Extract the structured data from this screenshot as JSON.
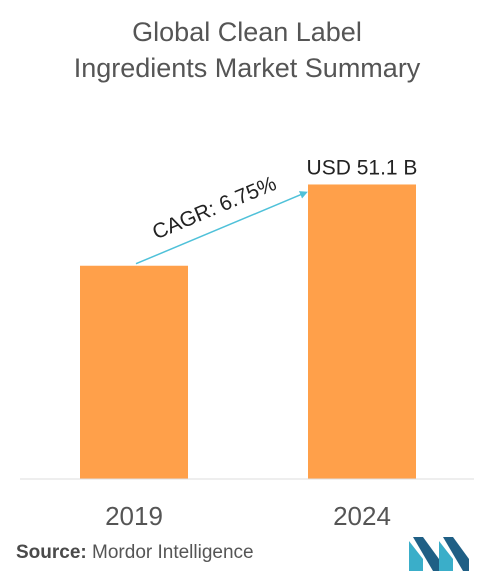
{
  "header": {
    "title_line1": "Global Clean Label",
    "title_line2": "Ingredients Market Summary"
  },
  "chart_data": {
    "type": "bar",
    "categories": [
      "2019",
      "2024"
    ],
    "values": [
      37.0,
      51.1
    ],
    "bar_color": "#FFA04A",
    "value_labels": [
      "",
      "USD 51.1 B"
    ],
    "annotation": {
      "text": "CAGR: 6.75%",
      "color": "#4FC1D9"
    },
    "ylim": [
      0,
      55
    ],
    "grid": false
  },
  "footer": {
    "source_label": "Source:",
    "source_text": " Mordor Intelligence"
  },
  "logo": {
    "icon": "mordor-intelligence-logo-icon",
    "colors": [
      "#3AAEC9",
      "#1F5F85"
    ]
  }
}
